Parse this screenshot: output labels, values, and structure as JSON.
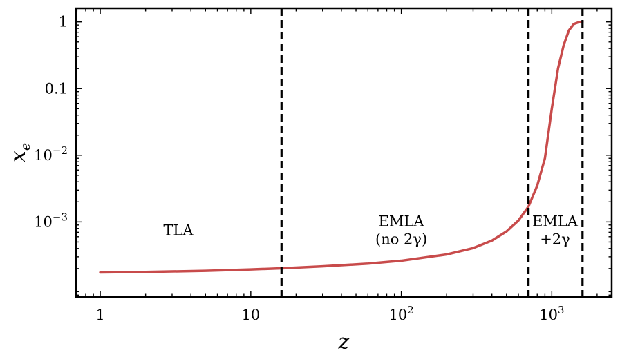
{
  "chart_data": {
    "type": "line",
    "xscale": "log",
    "yscale": "log",
    "xlabel": "z",
    "ylabel": "x_e",
    "xlim": [
      0.69,
      2500
    ],
    "ylim": [
      7.5e-05,
      1.6
    ],
    "grid": false,
    "x_ticks": [
      {
        "value": 1,
        "label": "1"
      },
      {
        "value": 10,
        "label": "10"
      },
      {
        "value": 100,
        "label": "10^2"
      },
      {
        "value": 1000,
        "label": "10^3"
      }
    ],
    "y_ticks": [
      {
        "value": 0.001,
        "label": "10^-3"
      },
      {
        "value": 0.01,
        "label": "10^-2"
      },
      {
        "value": 0.1,
        "label": "0.1"
      },
      {
        "value": 1,
        "label": "1"
      }
    ],
    "series": [
      {
        "color": "#c84b4b",
        "x": [
          1,
          2,
          5,
          10,
          16,
          30,
          60,
          100,
          200,
          300,
          400,
          500,
          600,
          700,
          800,
          900,
          1000,
          1100,
          1200,
          1300,
          1400,
          1500,
          1600
        ],
        "y": [
          0.000175,
          0.000178,
          0.000185,
          0.000194,
          0.000202,
          0.000216,
          0.000237,
          0.000262,
          0.000325,
          0.000405,
          0.000525,
          0.00072,
          0.00105,
          0.0017,
          0.0035,
          0.009,
          0.05,
          0.2,
          0.45,
          0.75,
          0.93,
          0.985,
          1.0
        ]
      }
    ],
    "vlines": [
      {
        "x": 16,
        "style": "dashed",
        "color": "#000000"
      },
      {
        "x": 700,
        "style": "dashed",
        "color": "#000000"
      },
      {
        "x": 1600,
        "style": "dashed",
        "color": "#000000"
      }
    ],
    "annotations": [
      {
        "lines": [
          "TLA"
        ],
        "x": 3.3,
        "y": 0.00075
      },
      {
        "lines": [
          "EMLA",
          "(no 2γ)"
        ],
        "x": 100,
        "y": 0.00075
      },
      {
        "lines": [
          "EMLA",
          "+2γ"
        ],
        "x": 1050,
        "y": 0.00075
      }
    ]
  }
}
